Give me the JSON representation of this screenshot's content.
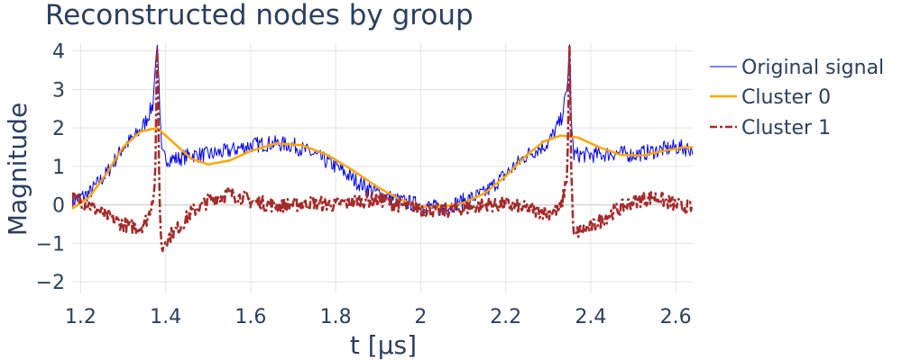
{
  "chart_data": {
    "type": "line",
    "title": "Reconstructed nodes by group",
    "xlabel": "t [μs]",
    "ylabel": "Magnitude",
    "xlim": [
      1.18,
      2.64
    ],
    "ylim": [
      -2.3,
      4.2
    ],
    "xticks": [
      1.2,
      1.4,
      1.6,
      1.8,
      2.0,
      2.2,
      2.4,
      2.6
    ],
    "xtick_labels": [
      "1.2",
      "1.4",
      "1.6",
      "1.8",
      "2",
      "2.2",
      "2.4",
      "2.6"
    ],
    "yticks": [
      -2,
      -1,
      0,
      1,
      2,
      3,
      4
    ],
    "ytick_labels": [
      "−2",
      "−1",
      "0",
      "1",
      "2",
      "3",
      "4"
    ],
    "grid": true,
    "legend_position": "right",
    "series": [
      {
        "name": "Original signal",
        "color": "#0000ee",
        "style": "solid-thin",
        "x": [
          1.18,
          1.22,
          1.26,
          1.3,
          1.33,
          1.35,
          1.37,
          1.375,
          1.38,
          1.385,
          1.39,
          1.4,
          1.43,
          1.46,
          1.5,
          1.55,
          1.6,
          1.65,
          1.7,
          1.75,
          1.8,
          1.85,
          1.9,
          1.95,
          2.0,
          2.05,
          2.1,
          2.15,
          2.2,
          2.25,
          2.3,
          2.33,
          2.345,
          2.35,
          2.355,
          2.36,
          2.38,
          2.42,
          2.46,
          2.5,
          2.55,
          2.6,
          2.64
        ],
        "y": [
          0.1,
          0.3,
          0.8,
          1.5,
          1.8,
          2.1,
          2.6,
          3.5,
          4.2,
          3.0,
          1.3,
          1.2,
          1.2,
          1.3,
          1.3,
          1.4,
          1.55,
          1.6,
          1.55,
          1.3,
          1.0,
          0.6,
          0.3,
          0.1,
          0.0,
          -0.1,
          0.1,
          0.3,
          0.8,
          1.3,
          1.6,
          2.2,
          3.0,
          4.2,
          2.0,
          1.3,
          1.3,
          1.3,
          1.35,
          1.3,
          1.4,
          1.5,
          1.45
        ]
      },
      {
        "name": "Cluster 0",
        "color": "#ffa500",
        "style": "solid",
        "x": [
          1.18,
          1.22,
          1.26,
          1.3,
          1.34,
          1.38,
          1.42,
          1.46,
          1.5,
          1.55,
          1.6,
          1.66,
          1.72,
          1.78,
          1.84,
          1.9,
          1.95,
          2.0,
          2.05,
          2.1,
          2.15,
          2.2,
          2.25,
          2.29,
          2.33,
          2.37,
          2.42,
          2.47,
          2.52,
          2.57,
          2.62,
          2.64
        ],
        "y": [
          -0.1,
          0.2,
          0.8,
          1.5,
          1.9,
          2.0,
          1.6,
          1.2,
          1.05,
          1.15,
          1.4,
          1.6,
          1.55,
          1.3,
          0.9,
          0.45,
          0.15,
          -0.05,
          -0.05,
          0.05,
          0.3,
          0.75,
          1.3,
          1.65,
          1.8,
          1.75,
          1.5,
          1.3,
          1.28,
          1.4,
          1.5,
          1.5
        ]
      },
      {
        "name": "Cluster 1",
        "color": "#a52a2a",
        "style": "dashdot",
        "x": [
          1.18,
          1.22,
          1.26,
          1.3,
          1.34,
          1.36,
          1.375,
          1.38,
          1.385,
          1.39,
          1.4,
          1.43,
          1.46,
          1.5,
          1.55,
          1.6,
          1.65,
          1.7,
          1.75,
          1.8,
          1.85,
          1.9,
          1.95,
          2.0,
          2.05,
          2.1,
          2.15,
          2.2,
          2.25,
          2.3,
          2.33,
          2.345,
          2.35,
          2.355,
          2.36,
          2.37,
          2.4,
          2.45,
          2.5,
          2.55,
          2.6,
          2.64
        ],
        "y": [
          0.2,
          0.0,
          -0.3,
          -0.5,
          -0.6,
          -0.3,
          0.5,
          4.2,
          0.5,
          -1.2,
          -0.9,
          -0.6,
          -0.2,
          0.1,
          0.3,
          0.1,
          0.0,
          0.0,
          0.05,
          0.0,
          0.1,
          0.15,
          0.0,
          -0.1,
          -0.15,
          -0.1,
          0.0,
          0.0,
          -0.1,
          -0.2,
          -0.1,
          0.8,
          4.2,
          0.5,
          -0.9,
          -0.7,
          -0.6,
          -0.2,
          0.1,
          0.2,
          0.0,
          -0.1
        ]
      }
    ]
  }
}
